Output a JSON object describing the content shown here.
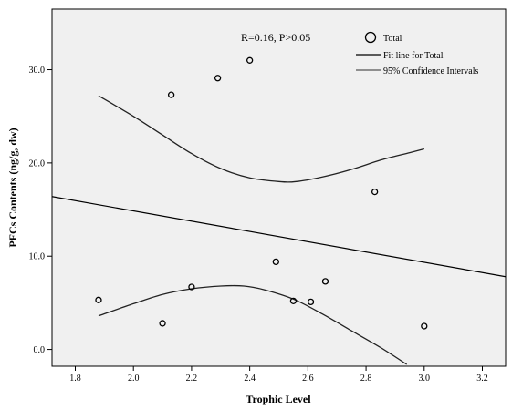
{
  "chart_data": {
    "type": "scatter",
    "title": "",
    "xlabel": "Trophic Level",
    "ylabel": "PFCs Contents (ng/g, dw)",
    "xlim": [
      1.72,
      3.28
    ],
    "ylim": [
      -1.8,
      36.5
    ],
    "x_ticks": [
      1.8,
      2.0,
      2.2,
      2.4,
      2.6,
      2.8,
      3.0,
      3.2
    ],
    "x_tick_labels": [
      "1.8",
      "2.0",
      "2.2",
      "2.4",
      "2.6",
      "2.8",
      "3.0",
      "3.2"
    ],
    "y_ticks": [
      0,
      10,
      20,
      30
    ],
    "y_tick_labels": [
      "0.0",
      "10.0",
      "20.0",
      "30.0"
    ],
    "grid": false,
    "background": "#f0f0f0",
    "annotation": "R=0.16, P>0.05",
    "legend": {
      "placement": "top-right",
      "entries": [
        "Total",
        "Fit line for Total",
        "95% Confidence Intervals"
      ]
    },
    "points": [
      {
        "x": 1.88,
        "y": 5.3
      },
      {
        "x": 2.1,
        "y": 2.8
      },
      {
        "x": 2.13,
        "y": 27.3
      },
      {
        "x": 2.2,
        "y": 6.7
      },
      {
        "x": 2.29,
        "y": 29.1
      },
      {
        "x": 2.4,
        "y": 31.0
      },
      {
        "x": 2.49,
        "y": 9.4
      },
      {
        "x": 2.55,
        "y": 5.2
      },
      {
        "x": 2.61,
        "y": 5.1
      },
      {
        "x": 2.66,
        "y": 7.3
      },
      {
        "x": 2.83,
        "y": 16.9
      },
      {
        "x": 3.0,
        "y": 2.5
      }
    ],
    "fit_line": [
      {
        "x": 1.72,
        "y": 16.4
      },
      {
        "x": 3.28,
        "y": 7.8
      }
    ],
    "ci_upper": [
      {
        "x": 1.88,
        "y": 27.2
      },
      {
        "x": 2.0,
        "y": 25.0
      },
      {
        "x": 2.1,
        "y": 23.0
      },
      {
        "x": 2.2,
        "y": 21.0
      },
      {
        "x": 2.3,
        "y": 19.4
      },
      {
        "x": 2.4,
        "y": 18.4
      },
      {
        "x": 2.5,
        "y": 18.0
      },
      {
        "x": 2.56,
        "y": 18.0
      },
      {
        "x": 2.65,
        "y": 18.5
      },
      {
        "x": 2.75,
        "y": 19.3
      },
      {
        "x": 2.85,
        "y": 20.3
      },
      {
        "x": 2.95,
        "y": 21.1
      },
      {
        "x": 3.0,
        "y": 21.5
      }
    ],
    "ci_lower": [
      {
        "x": 1.88,
        "y": 3.6
      },
      {
        "x": 2.0,
        "y": 4.9
      },
      {
        "x": 2.1,
        "y": 5.9
      },
      {
        "x": 2.2,
        "y": 6.5
      },
      {
        "x": 2.3,
        "y": 6.8
      },
      {
        "x": 2.38,
        "y": 6.8
      },
      {
        "x": 2.45,
        "y": 6.4
      },
      {
        "x": 2.55,
        "y": 5.4
      },
      {
        "x": 2.65,
        "y": 3.8
      },
      {
        "x": 2.75,
        "y": 2.0
      },
      {
        "x": 2.85,
        "y": 0.2
      },
      {
        "x": 2.94,
        "y": -1.6
      }
    ]
  }
}
